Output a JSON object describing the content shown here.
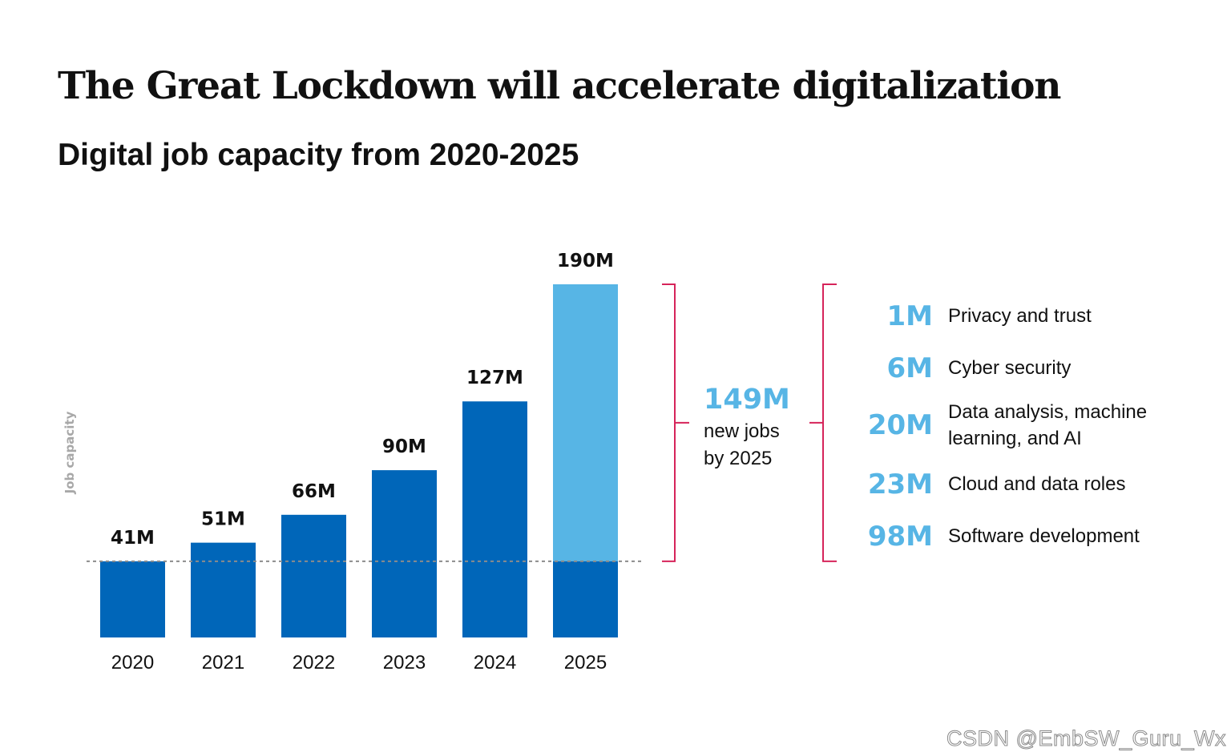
{
  "chart_data": {
    "type": "bar",
    "title": "The Great Lockdown will accelerate digitalization",
    "subtitle": "Digital job capacity from 2020-2025",
    "ylabel": "Job capacity",
    "xlabel": "",
    "categories": [
      "2020",
      "2021",
      "2022",
      "2023",
      "2024",
      "2025"
    ],
    "values": [
      41,
      51,
      66,
      90,
      127,
      190
    ],
    "value_labels": [
      "41M",
      "51M",
      "66M",
      "90M",
      "127M",
      "190M"
    ],
    "unit": "M",
    "baseline_reference": 41,
    "ylim": [
      0,
      190
    ],
    "grid": false,
    "legend": "none",
    "colors": {
      "bar": "#0066b9",
      "highlight": "#57b5e5",
      "bracket": "#d6245a",
      "axis_label": "#a8a8a8",
      "dotted_line": "#8c8c8c"
    },
    "annotation": {
      "value": "149M",
      "line1": "new jobs",
      "line2": "by 2025"
    },
    "breakdown": [
      {
        "value": "1M",
        "label": "Privacy and trust"
      },
      {
        "value": "6M",
        "label": "Cyber security"
      },
      {
        "value": "20M",
        "label": "Data analysis, machine learning, and AI"
      },
      {
        "value": "23M",
        "label": "Cloud and data roles"
      },
      {
        "value": "98M",
        "label": "Software development"
      }
    ]
  },
  "watermark": "CSDN @EmbSW_Guru_Wx"
}
